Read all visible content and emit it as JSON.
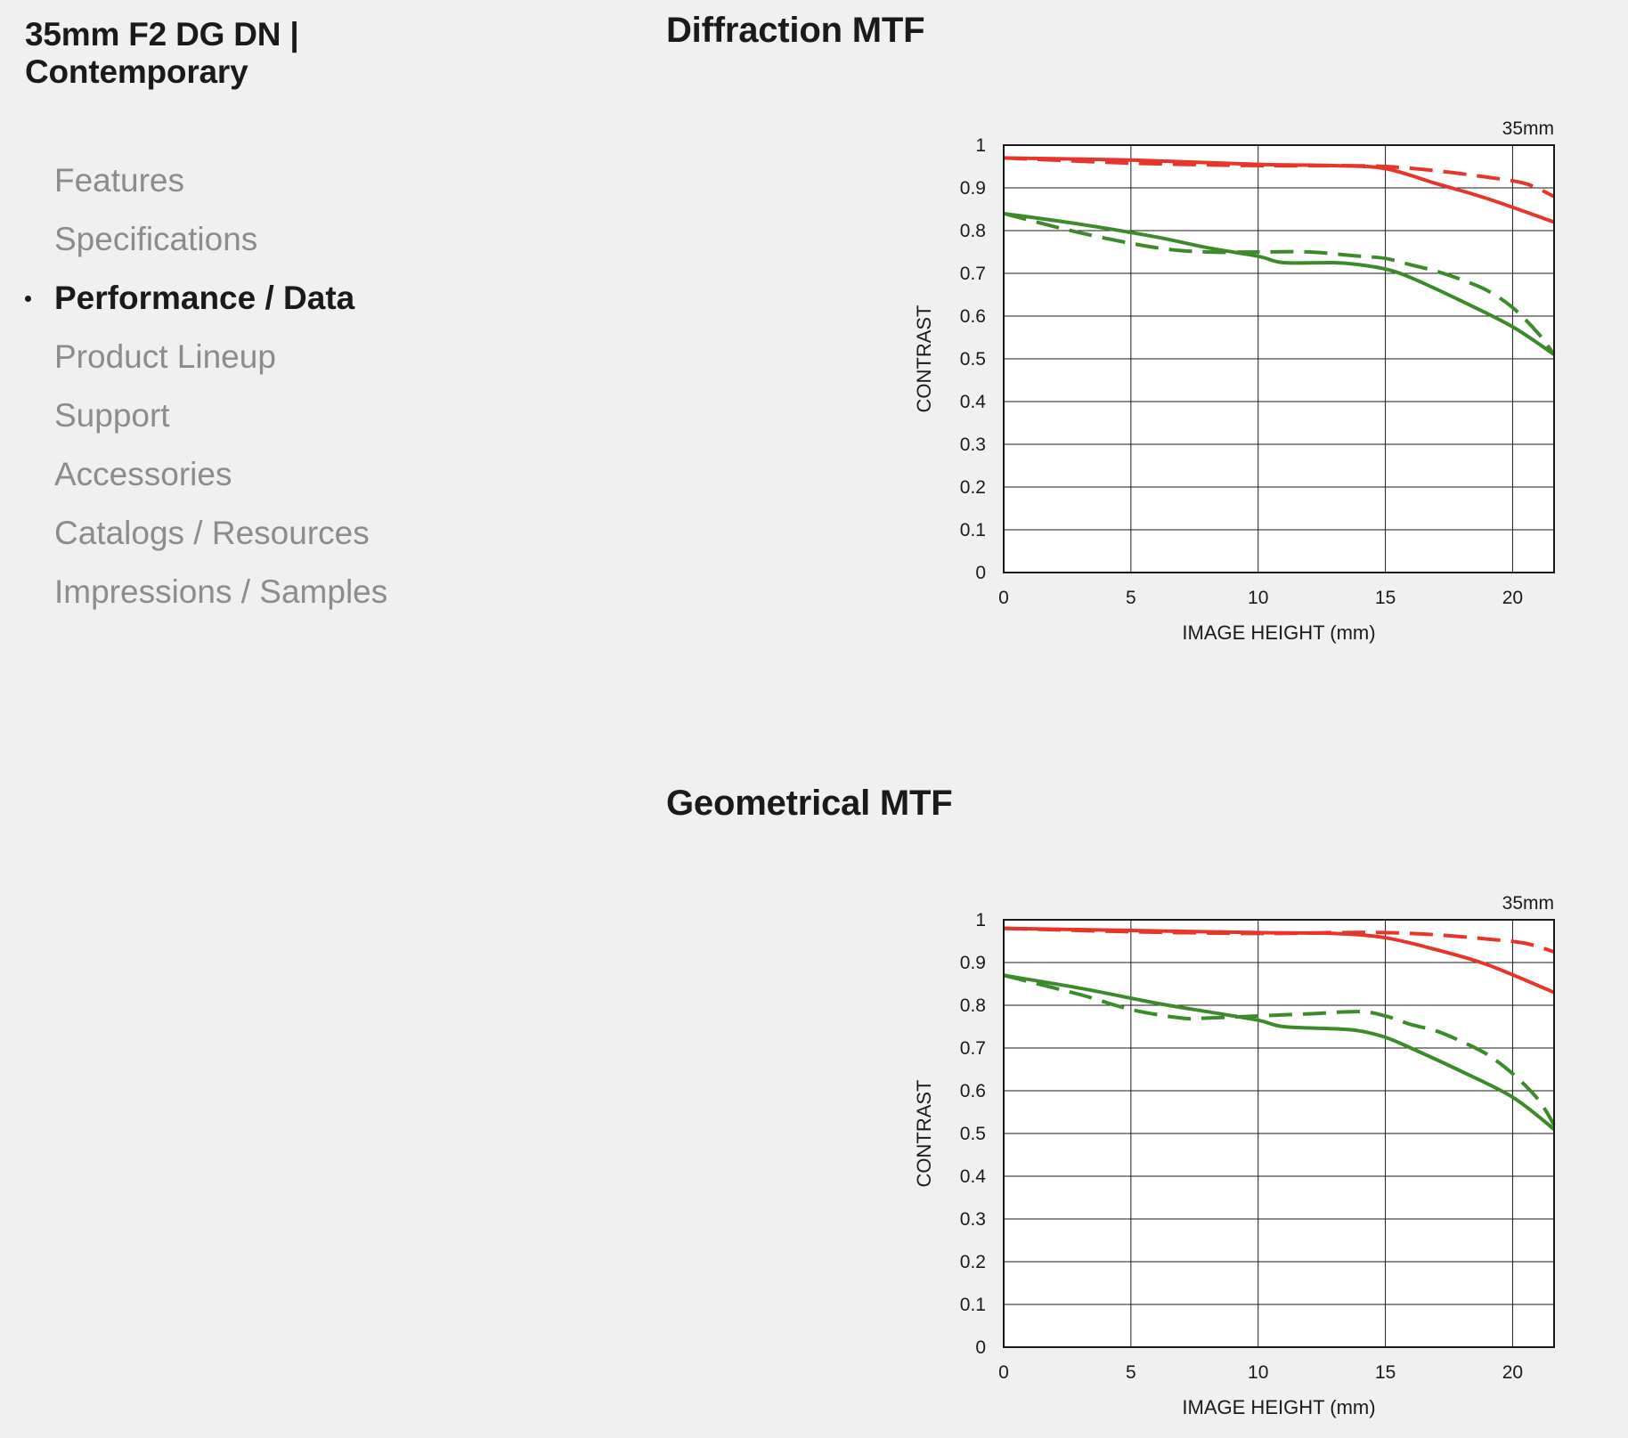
{
  "product": {
    "title": "35mm F2 DG DN | Contemporary"
  },
  "nav": {
    "items": [
      {
        "label": "Features",
        "active": false
      },
      {
        "label": "Specifications",
        "active": false
      },
      {
        "label": "Performance / Data",
        "active": true
      },
      {
        "label": "Product Lineup",
        "active": false
      },
      {
        "label": "Support",
        "active": false
      },
      {
        "label": "Accessories",
        "active": false
      },
      {
        "label": "Catalogs / Resources",
        "active": false
      },
      {
        "label": "Impressions / Samples",
        "active": false
      }
    ]
  },
  "sections": {
    "diffraction_title": "Diffraction MTF",
    "geometrical_title": "Geometrical MTF"
  },
  "colors": {
    "background": "#f0f0f0",
    "red_series": "#e8352c",
    "green_series": "#3d8a2c",
    "grid": "#1a1a1a"
  },
  "chart_data": [
    {
      "type": "line",
      "title": "",
      "focal_label": "35mm",
      "xlabel": "IMAGE HEIGHT (mm)",
      "ylabel": "CONTRAST",
      "xlim": [
        0,
        21.63
      ],
      "ylim": [
        0,
        1
      ],
      "xticks": [
        "0",
        "5",
        "10",
        "15",
        "20"
      ],
      "yticks": [
        "0",
        "0.1",
        "0.2",
        "0.3",
        "0.4",
        "0.5",
        "0.6",
        "0.7",
        "0.8",
        "0.9",
        "1"
      ],
      "grid": true,
      "series": [
        {
          "color": "#e8352c",
          "dash": false,
          "x": [
            0,
            5,
            10,
            13,
            15,
            17,
            19,
            21.63
          ],
          "y": [
            0.97,
            0.965,
            0.955,
            0.952,
            0.945,
            0.91,
            0.875,
            0.82
          ]
        },
        {
          "color": "#e8352c",
          "dash": true,
          "x": [
            0,
            5,
            10,
            13,
            15,
            17,
            19,
            20.5,
            21.63
          ],
          "y": [
            0.97,
            0.958,
            0.952,
            0.952,
            0.95,
            0.94,
            0.925,
            0.91,
            0.88
          ]
        },
        {
          "color": "#3d8a2c",
          "dash": false,
          "x": [
            0,
            3,
            6,
            8,
            10,
            11,
            13,
            14,
            15,
            16,
            18,
            20,
            21.63
          ],
          "y": [
            0.84,
            0.815,
            0.785,
            0.76,
            0.74,
            0.725,
            0.725,
            0.72,
            0.71,
            0.69,
            0.635,
            0.575,
            0.51
          ]
        },
        {
          "color": "#3d8a2c",
          "dash": true,
          "x": [
            0,
            3,
            6,
            8,
            10,
            12,
            14,
            15,
            16,
            17,
            18,
            19,
            20,
            21,
            21.63
          ],
          "y": [
            0.84,
            0.795,
            0.76,
            0.75,
            0.75,
            0.75,
            0.74,
            0.735,
            0.72,
            0.705,
            0.685,
            0.66,
            0.62,
            0.56,
            0.51
          ]
        }
      ]
    },
    {
      "type": "line",
      "title": "",
      "focal_label": "35mm",
      "xlabel": "IMAGE HEIGHT (mm)",
      "ylabel": "CONTRAST",
      "xlim": [
        0,
        21.63
      ],
      "ylim": [
        0,
        1
      ],
      "xticks": [
        "0",
        "5",
        "10",
        "15",
        "20"
      ],
      "yticks": [
        "0",
        "0.1",
        "0.2",
        "0.3",
        "0.4",
        "0.5",
        "0.6",
        "0.7",
        "0.8",
        "0.9",
        "1"
      ],
      "grid": true,
      "series": [
        {
          "color": "#e8352c",
          "dash": false,
          "x": [
            0,
            5,
            10,
            13,
            15,
            17,
            19,
            21.63
          ],
          "y": [
            0.98,
            0.975,
            0.97,
            0.968,
            0.958,
            0.93,
            0.895,
            0.83
          ]
        },
        {
          "color": "#e8352c",
          "dash": true,
          "x": [
            0,
            5,
            10,
            13,
            15,
            17,
            19,
            20.5,
            21.63
          ],
          "y": [
            0.98,
            0.972,
            0.968,
            0.97,
            0.97,
            0.965,
            0.955,
            0.945,
            0.925
          ]
        },
        {
          "color": "#3d8a2c",
          "dash": false,
          "x": [
            0,
            3,
            6,
            8,
            10,
            11,
            13,
            14,
            15,
            16,
            18,
            20,
            21.63
          ],
          "y": [
            0.87,
            0.84,
            0.805,
            0.785,
            0.765,
            0.75,
            0.745,
            0.74,
            0.725,
            0.7,
            0.645,
            0.585,
            0.51
          ]
        },
        {
          "color": "#3d8a2c",
          "dash": true,
          "x": [
            0,
            3,
            5,
            7,
            8,
            10,
            12,
            14,
            15,
            16,
            17,
            18,
            19,
            20,
            21,
            21.63
          ],
          "y": [
            0.87,
            0.825,
            0.79,
            0.77,
            0.77,
            0.775,
            0.78,
            0.785,
            0.775,
            0.755,
            0.74,
            0.715,
            0.685,
            0.64,
            0.58,
            0.52
          ]
        }
      ]
    }
  ]
}
